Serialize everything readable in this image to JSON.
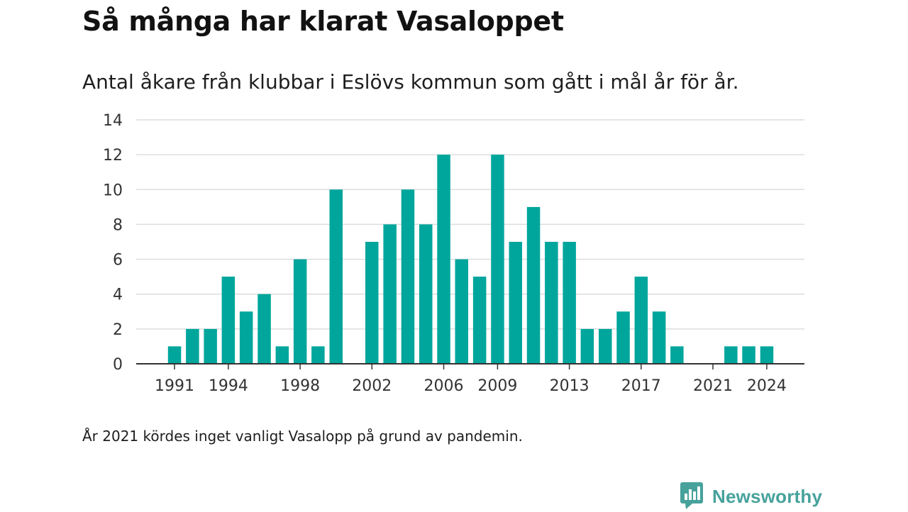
{
  "header": {
    "title": "Så många har klarat Vasaloppet",
    "subtitle": "Antal åkare från klubbar i Eslövs kommun som gått i mål år för år."
  },
  "footer": {
    "note": "År 2021 kördes inget vanligt Vasalopp på grund av pandemin.",
    "brand_name": "Newsworthy",
    "brand_icon": "bar-chart-speech-bubble-icon"
  },
  "colors": {
    "bar": "#00a69c",
    "grid": "#dddddd",
    "axis": "#333333",
    "brand": "#47a29c"
  },
  "chart_data": {
    "type": "bar",
    "title": "",
    "xlabel": "",
    "ylabel": "",
    "ylim": [
      0,
      14
    ],
    "yticks": [
      0,
      2,
      4,
      6,
      8,
      10,
      12,
      14
    ],
    "xtick_labels": [
      "1991",
      "1994",
      "1998",
      "2002",
      "2006",
      "2009",
      "2013",
      "2017",
      "2021",
      "2024"
    ],
    "grid": true,
    "categories": [
      1991,
      1992,
      1993,
      1994,
      1995,
      1996,
      1997,
      1998,
      1999,
      2000,
      2001,
      2002,
      2003,
      2004,
      2005,
      2006,
      2007,
      2008,
      2009,
      2010,
      2011,
      2012,
      2013,
      2014,
      2015,
      2016,
      2017,
      2018,
      2019,
      2020,
      2021,
      2022,
      2023,
      2024
    ],
    "values": [
      1,
      2,
      2,
      5,
      3,
      4,
      1,
      6,
      1,
      10,
      0,
      7,
      8,
      10,
      8,
      12,
      6,
      5,
      12,
      7,
      9,
      7,
      7,
      2,
      2,
      3,
      5,
      3,
      1,
      0,
      0,
      1,
      1,
      1
    ]
  }
}
